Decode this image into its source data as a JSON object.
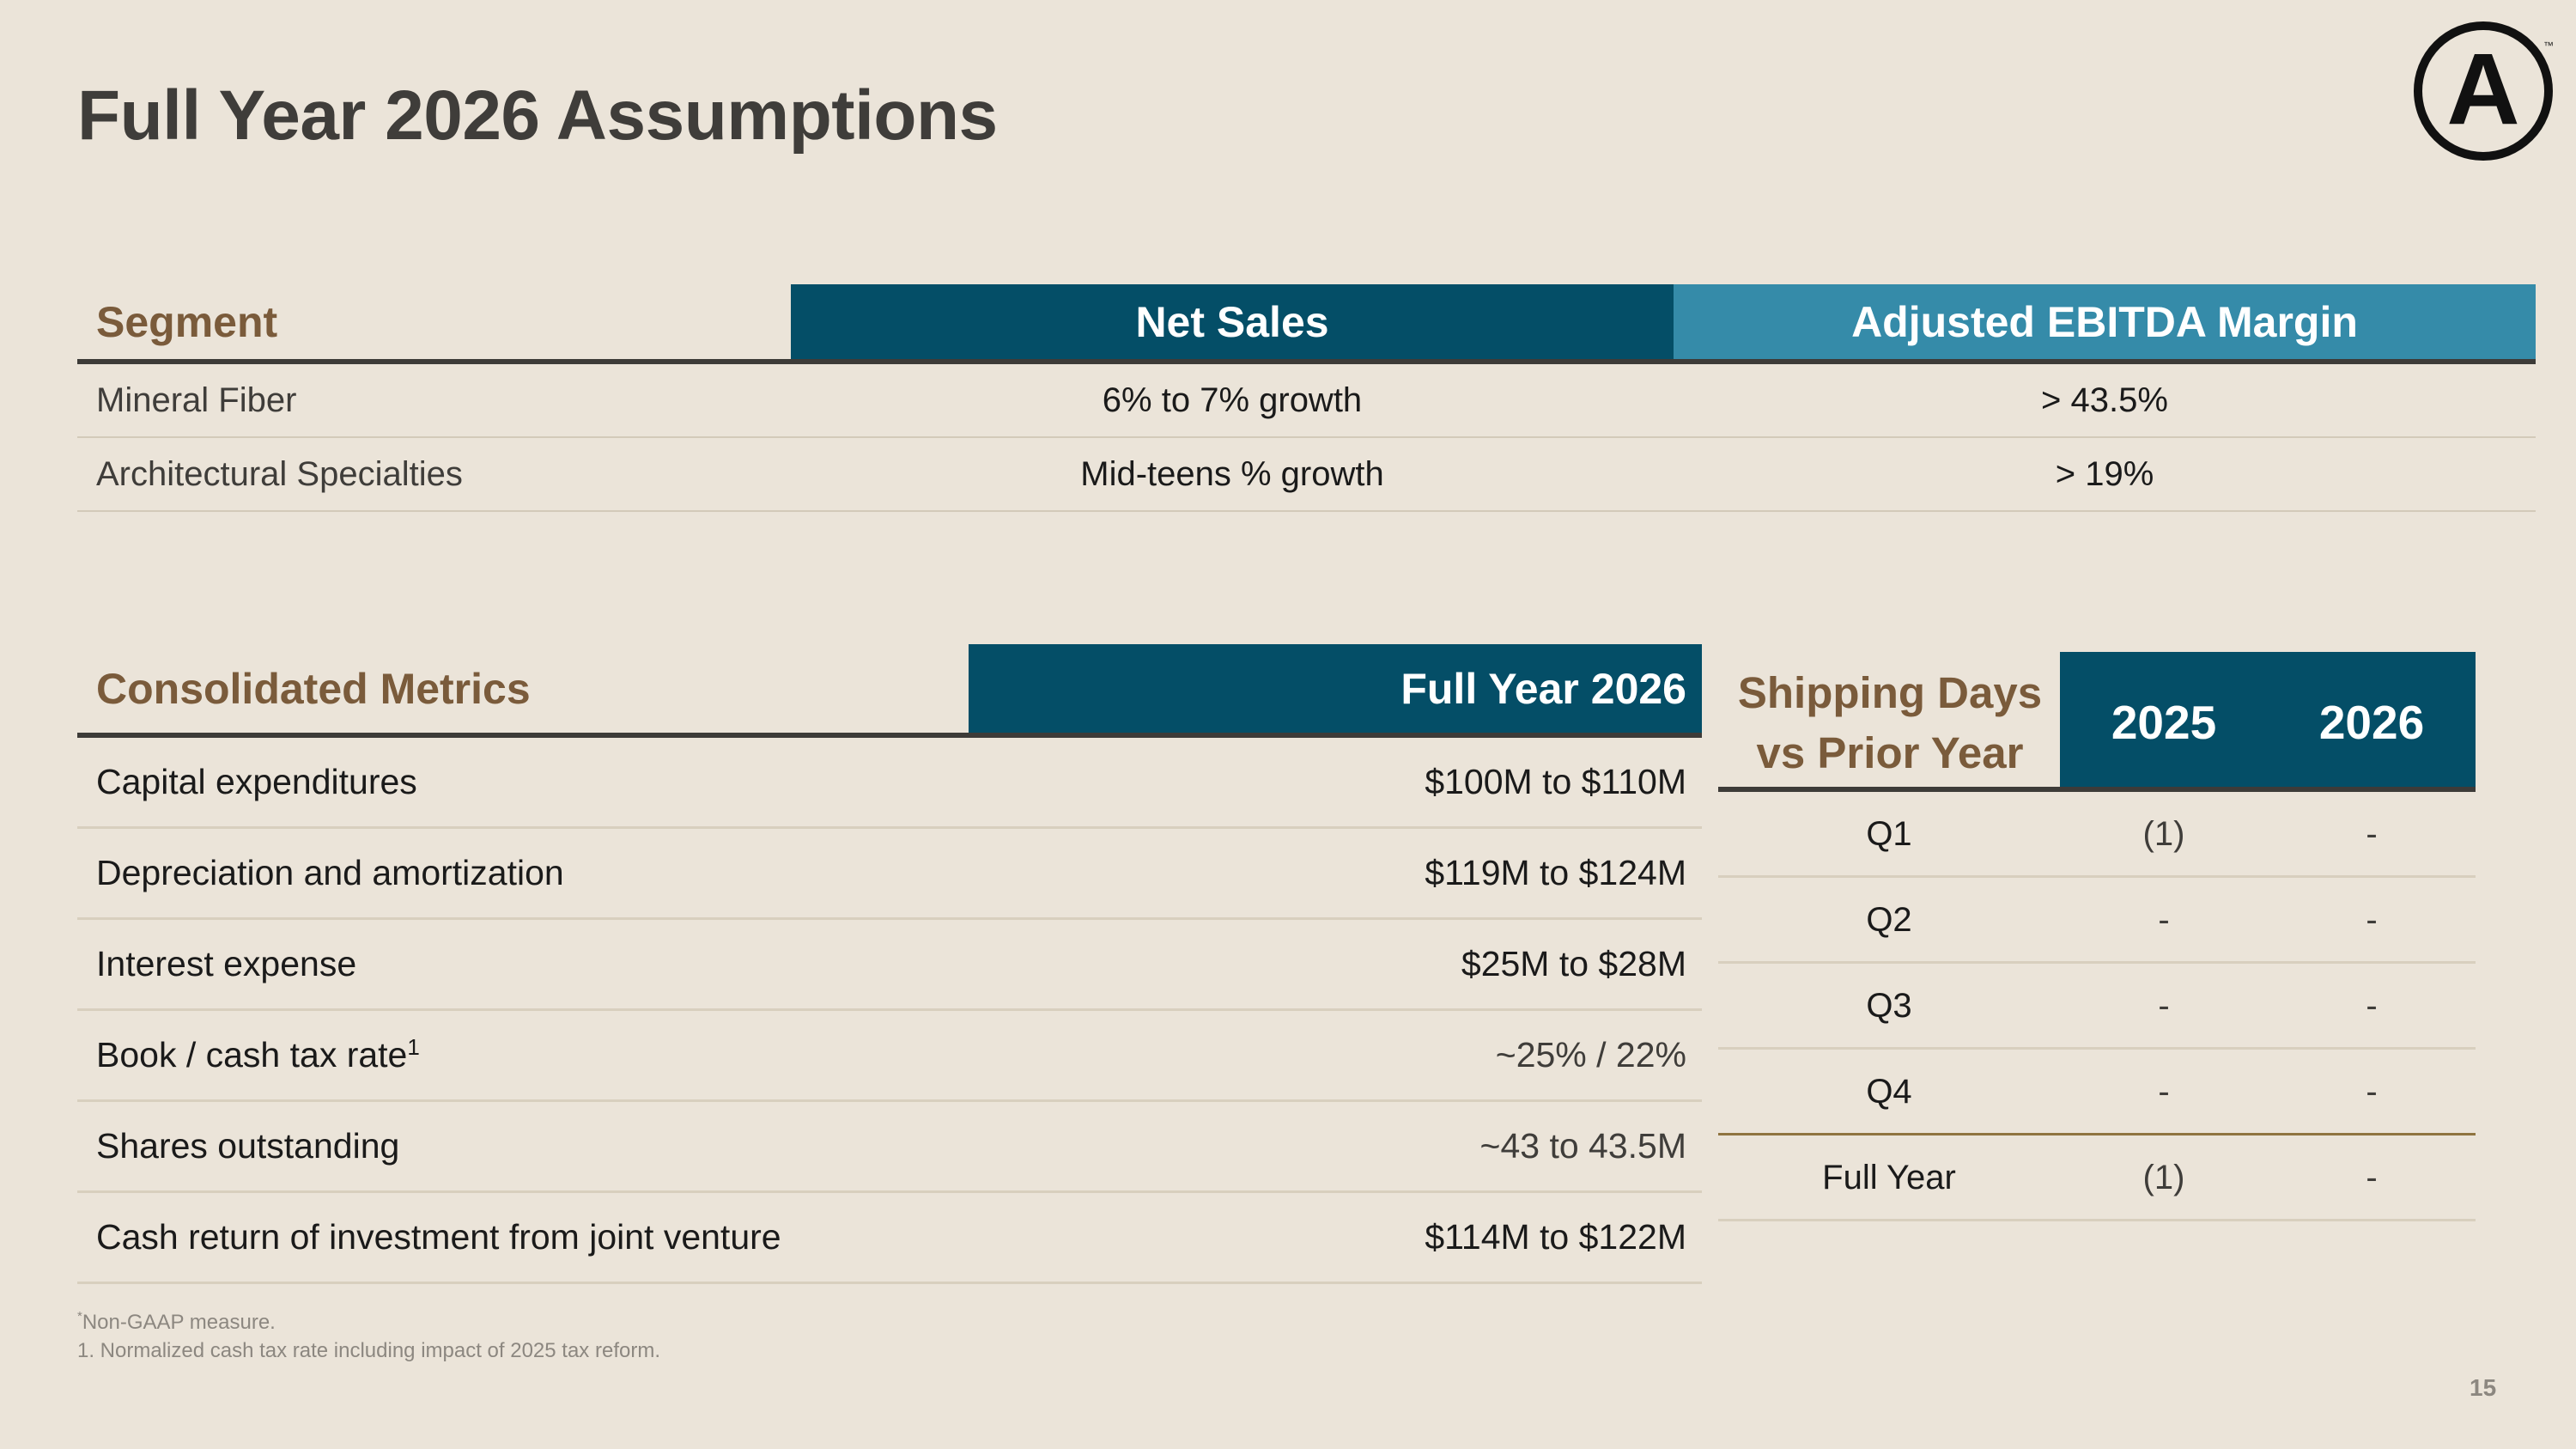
{
  "slide": {
    "title": "Full Year 2026 Assumptions",
    "page_number": "15",
    "logo_letter": "A",
    "logo_tm": "™"
  },
  "segment_table": {
    "headers": [
      "Segment",
      "Net Sales",
      "Adjusted EBITDA Margin"
    ],
    "header_colors": {
      "net_sales": "#044e67",
      "ebitda": "#358ba9"
    },
    "rows": [
      [
        "Mineral Fiber",
        "6% to 7% growth",
        "> 43.5%"
      ],
      [
        "Architectural Specialties",
        "Mid-teens % growth",
        "> 19%"
      ]
    ]
  },
  "consolidated_metrics": {
    "headers": [
      "Consolidated Metrics",
      "Full Year 2026"
    ],
    "rows": [
      {
        "label": "Capital expenditures",
        "value": "$100M to $110M"
      },
      {
        "label": "Depreciation and amortization",
        "value": "$119M to $124M"
      },
      {
        "label": "Interest expense",
        "value": "$25M to $28M"
      },
      {
        "label": "Book / cash tax rate",
        "footnote_ref": "1",
        "value": "~25% / 22%"
      },
      {
        "label": "Shares outstanding",
        "value": "~43 to 43.5M"
      },
      {
        "label": "Cash return of investment from joint venture",
        "value": "$114M to $122M"
      }
    ]
  },
  "shipping_days": {
    "header_label_line1": "Shipping Days",
    "header_label_line2": "vs Prior Year",
    "years": [
      "2025",
      "2026"
    ],
    "rows": [
      [
        "Q1",
        "(1)",
        "-"
      ],
      [
        "Q2",
        "-",
        "-"
      ],
      [
        "Q3",
        "-",
        "-"
      ],
      [
        "Q4",
        "-",
        "-"
      ],
      [
        "Full Year",
        "(1)",
        "-"
      ]
    ]
  },
  "footnotes": {
    "star_mark": "*",
    "non_gaap": "Non-GAAP measure.",
    "note_1": "1.  Normalized cash tax rate including impact of 2025 tax reform."
  }
}
